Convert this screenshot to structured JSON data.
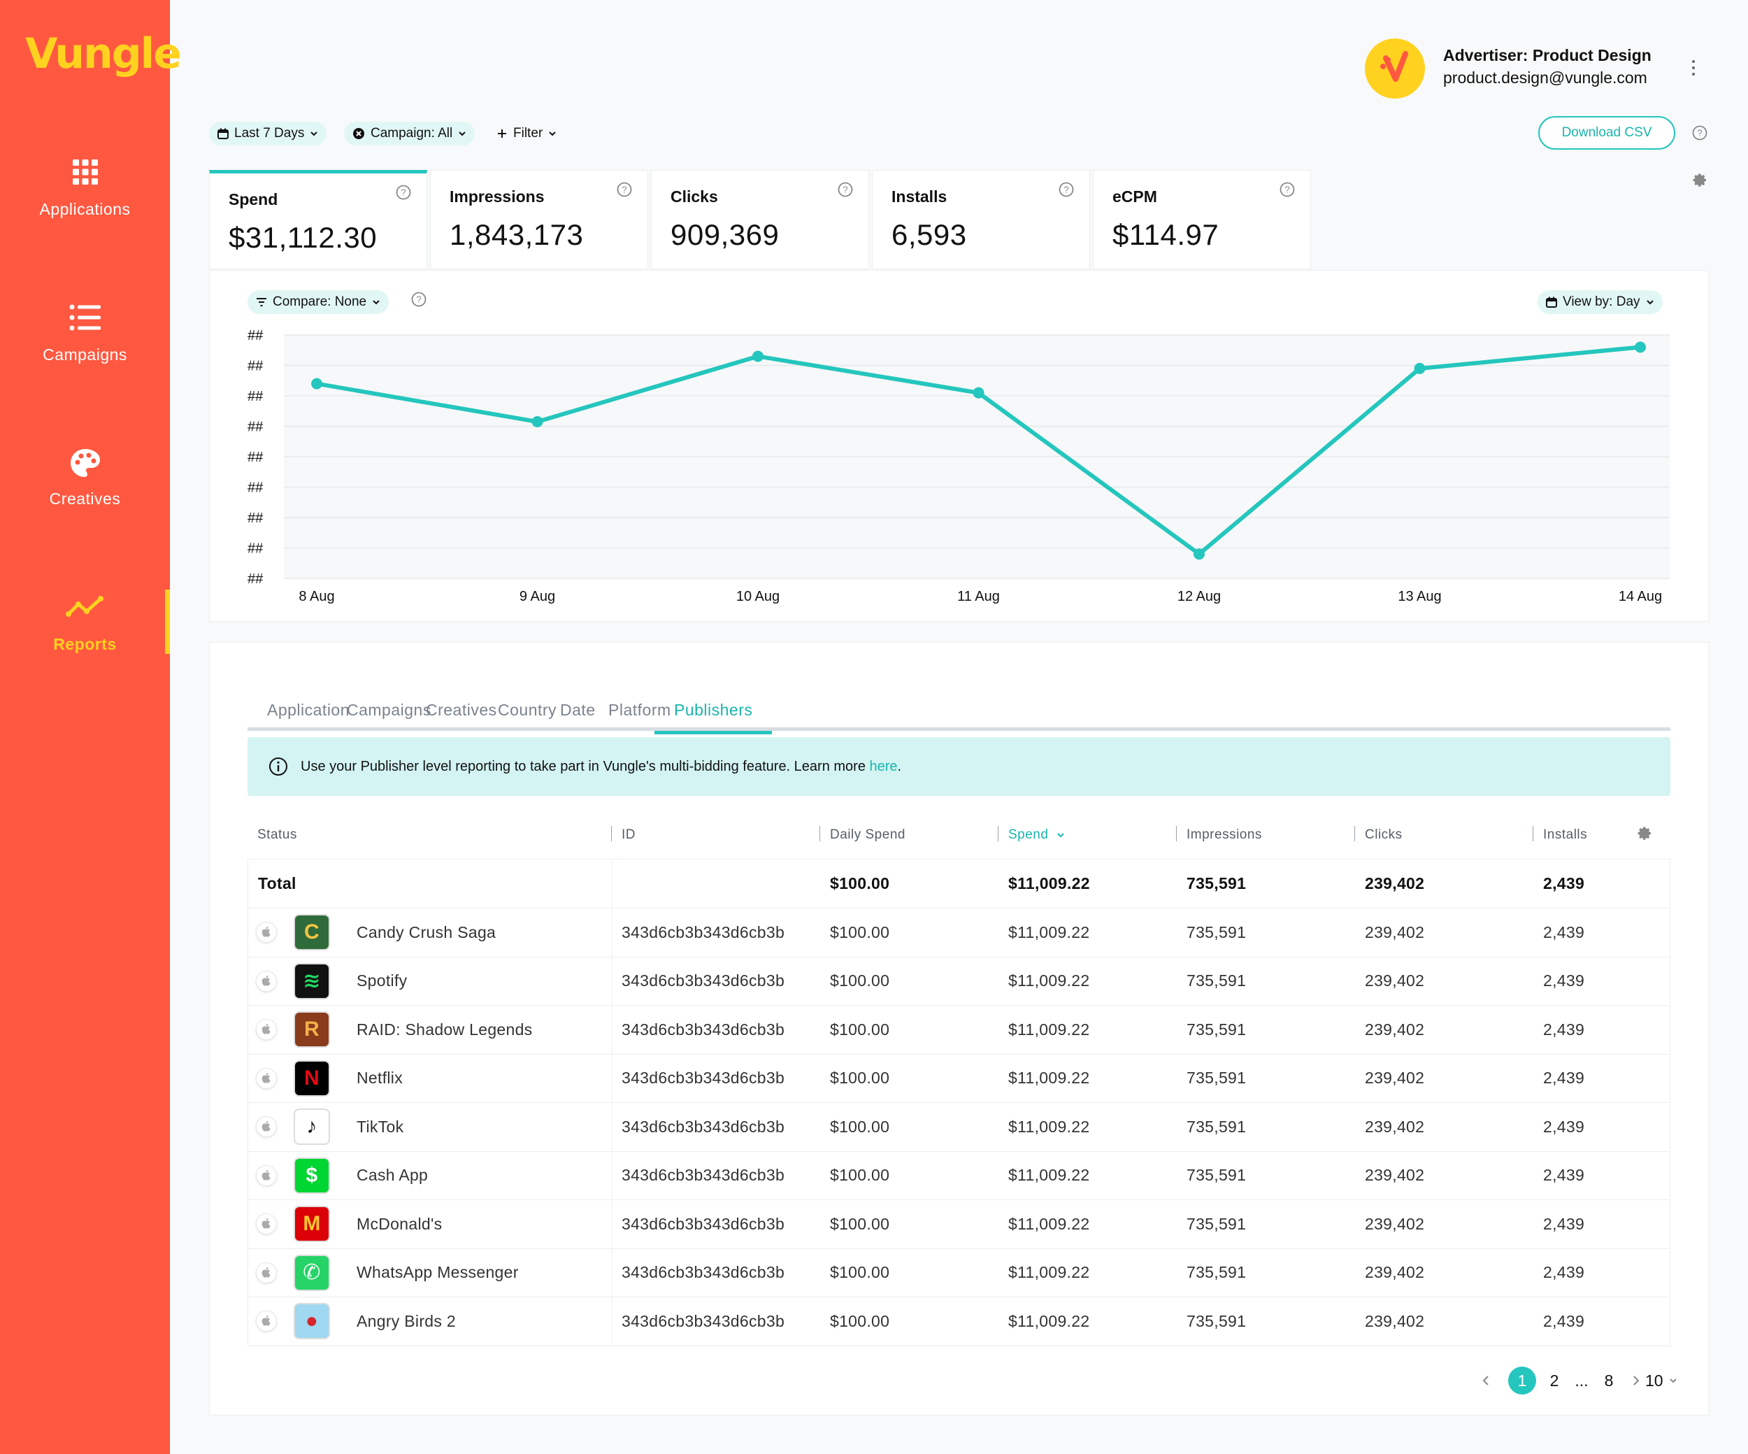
{
  "sidebar": {
    "logo": "Vungle",
    "items": [
      {
        "label": "Applications",
        "icon": "grid-icon"
      },
      {
        "label": "Campaigns",
        "icon": "list-icon"
      },
      {
        "label": "Creatives",
        "icon": "palette-icon"
      },
      {
        "label": "Reports",
        "icon": "trend-icon",
        "active": true
      }
    ]
  },
  "header": {
    "advertiser": "Advertiser: Product Design",
    "email": "product.design@vungle.com"
  },
  "filters": {
    "date": "Last 7 Days",
    "campaign": "Campaign: All",
    "add_filter": "Filter",
    "download": "Download CSV"
  },
  "metrics": [
    {
      "label": "Spend",
      "value": "$31,112.30",
      "selected": true
    },
    {
      "label": "Impressions",
      "value": "1,843,173"
    },
    {
      "label": "Clicks",
      "value": "909,369"
    },
    {
      "label": "Installs",
      "value": "6,593"
    },
    {
      "label": "eCPM",
      "value": "$114.97"
    }
  ],
  "chart_controls": {
    "compare": "Compare: None",
    "view_by": "View by: Day"
  },
  "chart_data": {
    "type": "line",
    "categories": [
      "8 Aug",
      "9 Aug",
      "10 Aug",
      "11 Aug",
      "12 Aug",
      "13 Aug",
      "14 Aug"
    ],
    "ytick_labels": [
      "##",
      "##",
      "##",
      "##",
      "##",
      "##",
      "##",
      "##",
      "##"
    ],
    "yrange": [
      0,
      8
    ],
    "series": [
      {
        "values": [
          6.4,
          5.15,
          7.3,
          6.1,
          0.8,
          6.9,
          7.6
        ]
      }
    ],
    "grid": true,
    "line_color": "#24c6bd"
  },
  "tabs": [
    "Application",
    "Campaigns",
    "Creatives",
    "Country",
    "Date",
    "Platform",
    "Publishers"
  ],
  "active_tab": "Publishers",
  "banner": {
    "text": "Use your Publisher level reporting to take part in Vungle's multi-bidding feature. Learn more ",
    "link": "here",
    "suffix": "."
  },
  "table": {
    "headers": [
      "Status",
      "ID",
      "Daily Spend",
      "Spend",
      "Impressions",
      "Clicks",
      "Installs"
    ],
    "total": {
      "label": "Total",
      "daily_spend": "$100.00",
      "spend": "$11,009.22",
      "impressions": "735,591",
      "clicks": "239,402",
      "installs": "2,439"
    },
    "rows": [
      {
        "name": "Candy Crush Saga",
        "id": "343d6cb3b343d6cb3b",
        "daily_spend": "$100.00",
        "spend": "$11,009.22",
        "impressions": "735,591",
        "clicks": "239,402",
        "installs": "2,439",
        "icon_bg": "#2f6b3a",
        "icon_fg": "#f4c542",
        "icon_text": "C"
      },
      {
        "name": "Spotify",
        "id": "343d6cb3b343d6cb3b",
        "daily_spend": "$100.00",
        "spend": "$11,009.22",
        "impressions": "735,591",
        "clicks": "239,402",
        "installs": "2,439",
        "icon_bg": "#111111",
        "icon_fg": "#1ed760",
        "icon_text": "≋"
      },
      {
        "name": "RAID: Shadow Legends",
        "id": "343d6cb3b343d6cb3b",
        "daily_spend": "$100.00",
        "spend": "$11,009.22",
        "impressions": "735,591",
        "clicks": "239,402",
        "installs": "2,439",
        "icon_bg": "#8a3b1c",
        "icon_fg": "#f2b14a",
        "icon_text": "R"
      },
      {
        "name": "Netflix",
        "id": "343d6cb3b343d6cb3b",
        "daily_spend": "$100.00",
        "spend": "$11,009.22",
        "impressions": "735,591",
        "clicks": "239,402",
        "installs": "2,439",
        "icon_bg": "#000000",
        "icon_fg": "#e50914",
        "icon_text": "N"
      },
      {
        "name": "TikTok",
        "id": "343d6cb3b343d6cb3b",
        "daily_spend": "$100.00",
        "spend": "$11,009.22",
        "impressions": "735,591",
        "clicks": "239,402",
        "installs": "2,439",
        "icon_bg": "#ffffff",
        "icon_fg": "#111111",
        "icon_text": "♪"
      },
      {
        "name": "Cash App",
        "id": "343d6cb3b343d6cb3b",
        "daily_spend": "$100.00",
        "spend": "$11,009.22",
        "impressions": "735,591",
        "clicks": "239,402",
        "installs": "2,439",
        "icon_bg": "#00d632",
        "icon_fg": "#ffffff",
        "icon_text": "$"
      },
      {
        "name": "McDonald's",
        "id": "343d6cb3b343d6cb3b",
        "daily_spend": "$100.00",
        "spend": "$11,009.22",
        "impressions": "735,591",
        "clicks": "239,402",
        "installs": "2,439",
        "icon_bg": "#db0007",
        "icon_fg": "#ffc72c",
        "icon_text": "M"
      },
      {
        "name": "WhatsApp Messenger",
        "id": "343d6cb3b343d6cb3b",
        "daily_spend": "$100.00",
        "spend": "$11,009.22",
        "impressions": "735,591",
        "clicks": "239,402",
        "installs": "2,439",
        "icon_bg": "#25d366",
        "icon_fg": "#ffffff",
        "icon_text": "✆"
      },
      {
        "name": "Angry Birds 2",
        "id": "343d6cb3b343d6cb3b",
        "daily_spend": "$100.00",
        "spend": "$11,009.22",
        "impressions": "735,591",
        "clicks": "239,402",
        "installs": "2,439",
        "icon_bg": "#9fd8f0",
        "icon_fg": "#d6262b",
        "icon_text": "●"
      }
    ]
  },
  "pagination": {
    "pages": [
      "1",
      "2",
      "...",
      "8"
    ],
    "active": "1",
    "per_page": "10"
  }
}
